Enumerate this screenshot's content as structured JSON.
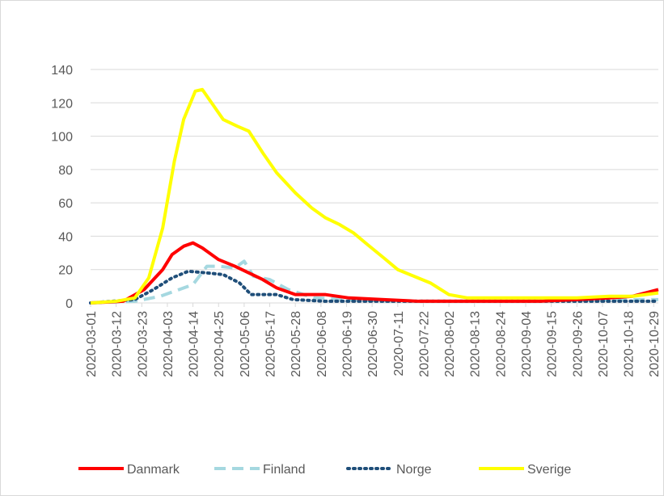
{
  "chart_data": {
    "type": "line",
    "xlim": [
      "2020-03-01",
      "2020-10-31"
    ],
    "xticks": [
      "2020-03-01",
      "2020-03-12",
      "2020-03-23",
      "2020-04-03",
      "2020-04-14",
      "2020-04-25",
      "2020-05-06",
      "2020-05-17",
      "2020-05-28",
      "2020-06-08",
      "2020-06-19",
      "2020-06-30",
      "2020-07-11",
      "2020-07-22",
      "2020-08-02",
      "2020-08-13",
      "2020-08-24",
      "2020-09-04",
      "2020-09-15",
      "2020-09-26",
      "2020-10-07",
      "2020-10-18",
      "2020-10-29"
    ],
    "ylim": [
      0,
      140
    ],
    "yticks": [
      0,
      20,
      40,
      60,
      80,
      100,
      120,
      140
    ],
    "grid": true,
    "legend": "bottom",
    "series": [
      {
        "name": "Danmark",
        "color": "#ff0000",
        "dash": "solid",
        "x": [
          "2020-03-01",
          "2020-03-15",
          "2020-03-24",
          "2020-04-01",
          "2020-04-05",
          "2020-04-10",
          "2020-04-14",
          "2020-04-18",
          "2020-04-25",
          "2020-05-02",
          "2020-05-08",
          "2020-05-14",
          "2020-05-20",
          "2020-05-28",
          "2020-06-10",
          "2020-06-20",
          "2020-07-05",
          "2020-07-20",
          "2020-08-10",
          "2020-08-24",
          "2020-09-10",
          "2020-09-26",
          "2020-10-10",
          "2020-10-20",
          "2020-10-31"
        ],
        "values": [
          0,
          1,
          8,
          20,
          29,
          34,
          36,
          33,
          26,
          22,
          18,
          14,
          9,
          5,
          5,
          3,
          2,
          1,
          1,
          1,
          1,
          2,
          3,
          4,
          8
        ]
      },
      {
        "name": "Finland",
        "color": "#a5d8e0",
        "dash": "dash",
        "x": [
          "2020-03-01",
          "2020-03-20",
          "2020-03-31",
          "2020-04-08",
          "2020-04-14",
          "2020-04-20",
          "2020-04-25",
          "2020-05-02",
          "2020-05-06",
          "2020-05-10",
          "2020-05-17",
          "2020-05-25",
          "2020-06-05",
          "2020-06-20",
          "2020-07-10",
          "2020-08-10",
          "2020-09-10",
          "2020-10-10",
          "2020-10-31"
        ],
        "values": [
          0,
          1,
          4,
          8,
          11,
          22,
          22,
          21,
          25,
          16,
          14,
          8,
          3,
          2,
          1,
          1,
          1,
          2,
          2
        ]
      },
      {
        "name": "Norge",
        "color": "#1f4e79",
        "dash": "dot",
        "x": [
          "2020-03-01",
          "2020-03-20",
          "2020-03-28",
          "2020-04-05",
          "2020-04-12",
          "2020-04-20",
          "2020-04-27",
          "2020-05-04",
          "2020-05-09",
          "2020-05-20",
          "2020-05-27",
          "2020-06-10",
          "2020-07-10",
          "2020-08-10",
          "2020-09-10",
          "2020-10-31"
        ],
        "values": [
          0,
          2,
          8,
          15,
          19,
          18,
          17,
          12,
          5,
          5,
          2,
          1,
          1,
          1,
          1,
          1
        ]
      },
      {
        "name": "Sverige",
        "color": "#ffff00",
        "dash": "solid",
        "x": [
          "2020-03-01",
          "2020-03-12",
          "2020-03-20",
          "2020-03-26",
          "2020-04-01",
          "2020-04-06",
          "2020-04-10",
          "2020-04-15",
          "2020-04-18",
          "2020-04-22",
          "2020-04-27",
          "2020-05-03",
          "2020-05-08",
          "2020-05-14",
          "2020-05-20",
          "2020-05-28",
          "2020-06-04",
          "2020-06-10",
          "2020-06-16",
          "2020-06-22",
          "2020-06-28",
          "2020-07-05",
          "2020-07-11",
          "2020-07-18",
          "2020-07-25",
          "2020-08-02",
          "2020-08-10",
          "2020-08-24",
          "2020-09-10",
          "2020-09-26",
          "2020-10-10",
          "2020-10-20",
          "2020-10-31"
        ],
        "values": [
          0,
          1,
          3,
          15,
          45,
          85,
          110,
          127,
          128,
          120,
          110,
          106,
          103,
          90,
          78,
          66,
          57,
          51,
          47,
          42,
          35,
          27,
          20,
          16,
          12,
          5,
          3,
          3,
          3,
          3,
          4,
          4,
          6
        ]
      }
    ]
  }
}
